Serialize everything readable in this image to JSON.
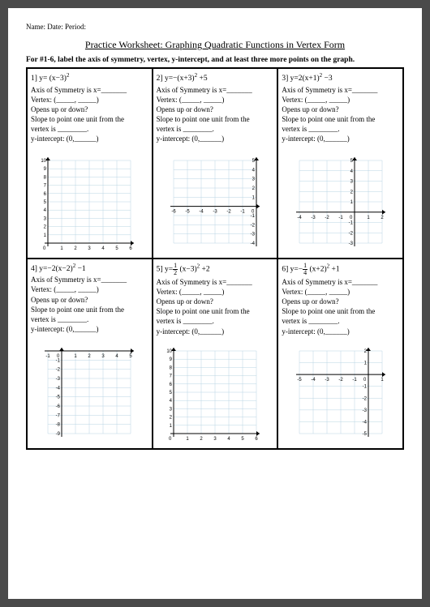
{
  "header": "Name: Date: Period:",
  "title": "Practice Worksheet: Graphing Quadratic Functions in Vertex Form",
  "instructions": "For #1-6, label the axis of symmetry, vertex, y-intercept, and at least three more points on the graph.",
  "prompts": {
    "axis": "Axis of Symmetry is x=_______",
    "vertex": "Vertex: (_____, _____)",
    "opens": "Opens up or down?",
    "slope1": "Slope to point one unit from the",
    "slope2": "vertex is ________.",
    "yint": "y-intercept: (0,______)"
  },
  "cells": [
    {
      "num": "1]",
      "eq_html": "y= (x−3)<sup>2</sup>",
      "chart": {
        "xmin": 0,
        "xmax": 6,
        "ymin": 0,
        "ymax": 10,
        "xstep": 1,
        "ystep": 1
      }
    },
    {
      "num": "2]",
      "eq_html": "y=−(x+3)<sup>2</sup> +5",
      "chart": {
        "xmin": -6,
        "xmax": 0,
        "ymin": -4,
        "ymax": 5,
        "xstep": 1,
        "ystep": 1
      }
    },
    {
      "num": "3]",
      "eq_html": "y=2(x+1)<sup>2</sup> −3",
      "chart": {
        "xmin": -4,
        "xmax": 2,
        "ymin": -3,
        "ymax": 5,
        "xstep": 1,
        "ystep": 1
      }
    },
    {
      "num": "4]",
      "eq_html": "y=−2(x−2)<sup>2</sup> −1",
      "chart": {
        "xmin": -1,
        "xmax": 5,
        "ymin": -9,
        "ymax": 0,
        "xstep": 1,
        "ystep": 1
      }
    },
    {
      "num": "5]",
      "eq_html": "y=<span class='frac'><span class='n'>1</span><span class='d'>2</span></span> (x−3)<sup>2</sup> +2",
      "chart": {
        "xmin": 0,
        "xmax": 6,
        "ymin": 0,
        "ymax": 10,
        "xstep": 1,
        "ystep": 1
      }
    },
    {
      "num": "6]",
      "eq_html": "y=−<span class='frac'><span class='n'>1</span><span class='d'>4</span></span> (x+2)<sup>2</sup> +1",
      "chart": {
        "xmin": -5,
        "xmax": 1,
        "ymin": -5,
        "ymax": 2,
        "xstep": 1,
        "ystep": 1
      }
    }
  ],
  "chart_style": {
    "width": 130,
    "height": 130,
    "grid_color": "#b8d4e3",
    "axis_color": "#000000",
    "tick_font": 6
  }
}
